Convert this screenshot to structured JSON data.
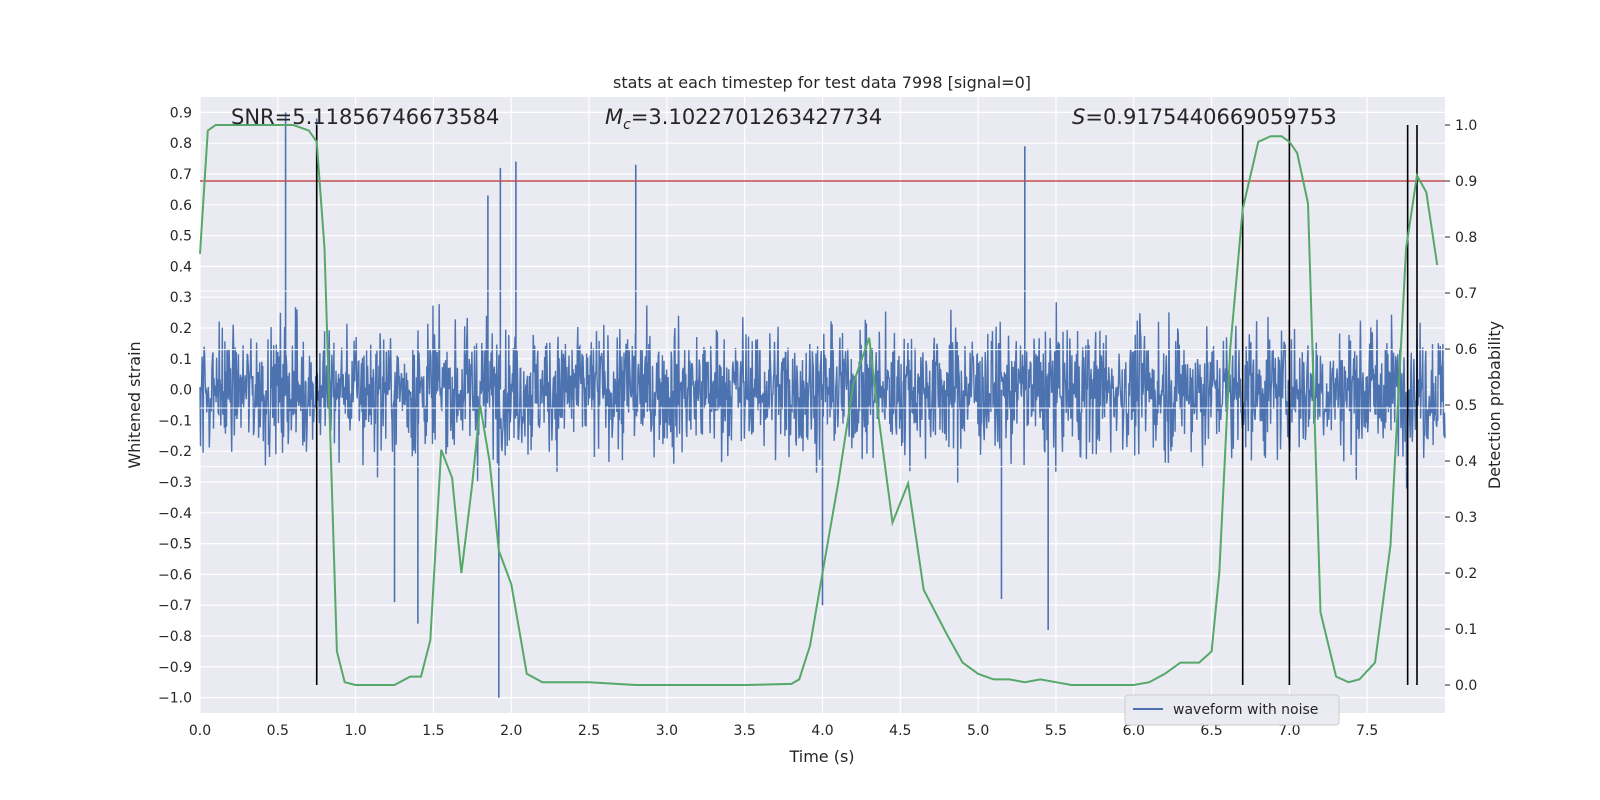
{
  "chart_data": {
    "type": "line",
    "title": "stats at each timestep for test data 7998 [signal=0]",
    "xlabel": "Time (s)",
    "ylabel_left": "Whitened strain",
    "ylabel_right": "Detection probability",
    "xlim": [
      0.0,
      8.0
    ],
    "ylim_left": [
      -1.05,
      0.95
    ],
    "ylim_right": [
      -0.05,
      1.05
    ],
    "x_ticks": [
      0.0,
      0.5,
      1.0,
      1.5,
      2.0,
      2.5,
      3.0,
      3.5,
      4.0,
      4.5,
      5.0,
      5.5,
      6.0,
      6.5,
      7.0,
      7.5
    ],
    "x_tick_labels": [
      "0.0",
      "0.5",
      "1.0",
      "1.5",
      "2.0",
      "2.5",
      "3.0",
      "3.5",
      "4.0",
      "4.5",
      "5.0",
      "5.5",
      "6.0",
      "6.5",
      "7.0",
      "7.5"
    ],
    "y_left_ticks": [
      0.9,
      0.8,
      0.7,
      0.6,
      0.5,
      0.4,
      0.3,
      0.2,
      0.1,
      0.0,
      -0.1,
      -0.2,
      -0.3,
      -0.4,
      -0.5,
      -0.6,
      -0.7,
      -0.8,
      -0.9,
      -1.0
    ],
    "y_left_tick_labels": [
      "0.9",
      "0.8",
      "0.7",
      "0.6",
      "0.5",
      "0.4",
      "0.3",
      "0.2",
      "0.1",
      "0.0",
      "−0.1",
      "−0.2",
      "−0.3",
      "−0.4",
      "−0.5",
      "−0.6",
      "−0.7",
      "−0.8",
      "−0.9",
      "−1.0"
    ],
    "y_right_ticks": [
      1.0,
      0.9,
      0.8,
      0.7,
      0.6,
      0.5,
      0.4,
      0.3,
      0.2,
      0.1,
      0.0
    ],
    "y_right_tick_labels": [
      "1.0",
      "0.9",
      "0.8",
      "0.7",
      "0.6",
      "0.5",
      "0.4",
      "0.3",
      "0.2",
      "0.1",
      "0.0"
    ],
    "threshold": {
      "value": 0.9,
      "axis": "right",
      "color": "#c44e52"
    },
    "vertical_lines": [
      0.75,
      6.7,
      7.0,
      7.76,
      7.82
    ],
    "annotations": {
      "snr": "SNR=5.11856746673584",
      "mc_symbol": "M",
      "mc_sub": "c",
      "mc_value": "=3.1022701263427734",
      "s_symbol": "S",
      "s_value": "=0.9175440669059753"
    },
    "series": [
      {
        "name": "waveform with noise",
        "axis": "left",
        "color": "#4c72b0",
        "noise_std": 0.14,
        "spikes": [
          [
            0.55,
            0.9
          ],
          [
            0.75,
            0.88
          ],
          [
            1.85,
            0.63
          ],
          [
            1.93,
            0.72
          ],
          [
            2.03,
            0.74
          ],
          [
            2.8,
            0.73
          ],
          [
            5.3,
            0.79
          ],
          [
            1.92,
            -1.0
          ],
          [
            1.4,
            -0.76
          ],
          [
            4.0,
            -0.7
          ],
          [
            5.45,
            -0.78
          ],
          [
            6.7,
            -0.74
          ],
          [
            1.25,
            -0.69
          ],
          [
            5.15,
            -0.68
          ]
        ]
      },
      {
        "name": "Detection probability",
        "axis": "right",
        "color": "#55a868",
        "x": [
          0.0,
          0.05,
          0.1,
          0.2,
          0.3,
          0.4,
          0.5,
          0.6,
          0.7,
          0.75,
          0.8,
          0.88,
          0.93,
          1.0,
          1.1,
          1.25,
          1.35,
          1.42,
          1.48,
          1.55,
          1.62,
          1.68,
          1.75,
          1.8,
          1.86,
          1.92,
          2.0,
          2.1,
          2.2,
          2.5,
          2.8,
          3.1,
          3.5,
          3.8,
          3.85,
          3.92,
          4.0,
          4.1,
          4.2,
          4.3,
          4.35,
          4.45,
          4.55,
          4.65,
          4.8,
          4.9,
          5.0,
          5.1,
          5.2,
          5.3,
          5.4,
          5.5,
          5.6,
          5.8,
          6.0,
          6.1,
          6.2,
          6.3,
          6.35,
          6.42,
          6.5,
          6.55,
          6.62,
          6.7,
          6.8,
          6.88,
          6.95,
          7.0,
          7.05,
          7.12,
          7.2,
          7.3,
          7.38,
          7.45,
          7.55,
          7.65,
          7.75,
          7.82,
          7.88,
          7.95
        ],
        "y": [
          0.77,
          0.99,
          1.0,
          1.0,
          1.0,
          1.0,
          1.0,
          1.0,
          0.99,
          0.97,
          0.78,
          0.06,
          0.005,
          0.0,
          0.0,
          0.0,
          0.015,
          0.015,
          0.08,
          0.42,
          0.37,
          0.2,
          0.36,
          0.5,
          0.4,
          0.24,
          0.18,
          0.02,
          0.005,
          0.005,
          0.0,
          0.0,
          0.0,
          0.002,
          0.01,
          0.07,
          0.2,
          0.36,
          0.54,
          0.62,
          0.5,
          0.29,
          0.36,
          0.17,
          0.09,
          0.04,
          0.02,
          0.01,
          0.01,
          0.005,
          0.01,
          0.005,
          0.0,
          0.0,
          0.0,
          0.005,
          0.02,
          0.04,
          0.04,
          0.04,
          0.06,
          0.2,
          0.6,
          0.85,
          0.97,
          0.98,
          0.98,
          0.97,
          0.95,
          0.86,
          0.13,
          0.015,
          0.005,
          0.01,
          0.04,
          0.25,
          0.78,
          0.91,
          0.88,
          0.75
        ]
      }
    ],
    "legend": {
      "label": "waveform with noise",
      "location": "lower-right"
    }
  }
}
